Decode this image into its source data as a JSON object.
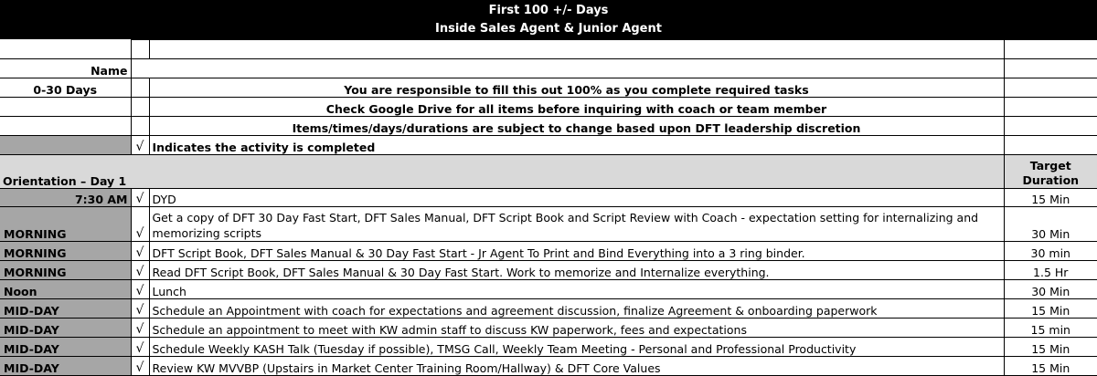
{
  "header": {
    "title": "First 100 +/- Days",
    "subtitle": "Inside Sales Agent & Junior Agent"
  },
  "form": {
    "name_label": "Name",
    "period_label": "0-30 Days",
    "notes": [
      "You are responsible to fill this out 100% as you complete required tasks",
      "Check Google Drive for all items before inquiring with coach or team member",
      "Items/times/days/durations are subject to change based upon DFT leadership discretion"
    ],
    "legend_mark": "√",
    "legend_text": "Indicates the activity is completed"
  },
  "section": {
    "title": "Orientation – Day 1",
    "target_header": "Target Duration"
  },
  "tasks": [
    {
      "time": "7:30 AM",
      "check": "√",
      "task": "DYD",
      "duration": "15 Min"
    },
    {
      "time": "MORNING",
      "check": "√",
      "task": "Get a copy of DFT 30 Day Fast Start, DFT Sales Manual, DFT Script Book and Script Review with Coach - expectation setting for internalizing and memorizing scripts",
      "duration": "30 Min"
    },
    {
      "time": "MORNING",
      "check": "√",
      "task": "DFT Script Book, DFT Sales Manual & 30 Day Fast Start - Jr Agent To Print and Bind Everything into a 3 ring binder.",
      "duration": "30 min"
    },
    {
      "time": "MORNING",
      "check": "√",
      "task": "Read DFT Script Book, DFT Sales Manual & 30 Day Fast Start. Work to memorize and Internalize everything.",
      "duration": "1.5 Hr"
    },
    {
      "time": "Noon",
      "check": "√",
      "task": "Lunch",
      "duration": "30 Min"
    },
    {
      "time": "MID-DAY",
      "check": "√",
      "task": "Schedule an Appointment with coach for expectations and agreement discussion, finalize Agreement & onboarding paperwork",
      "duration": "15 Min"
    },
    {
      "time": "MID-DAY",
      "check": "√",
      "task": "Schedule an appointment to meet with KW admin staff to discuss KW paperwork, fees and expectations",
      "duration": "15 min"
    },
    {
      "time": "MID-DAY",
      "check": "√",
      "task": "Schedule Weekly KASH Talk (Tuesday if possible), TMSG Call, Weekly Team Meeting - Personal and Professional Productivity",
      "duration": "15 Min"
    },
    {
      "time": "MID-DAY",
      "check": "√",
      "task": "Review KW MVVBP (Upstairs in Market Center Training Room/Hallway) & DFT Core Values",
      "duration": "15 Min"
    }
  ]
}
